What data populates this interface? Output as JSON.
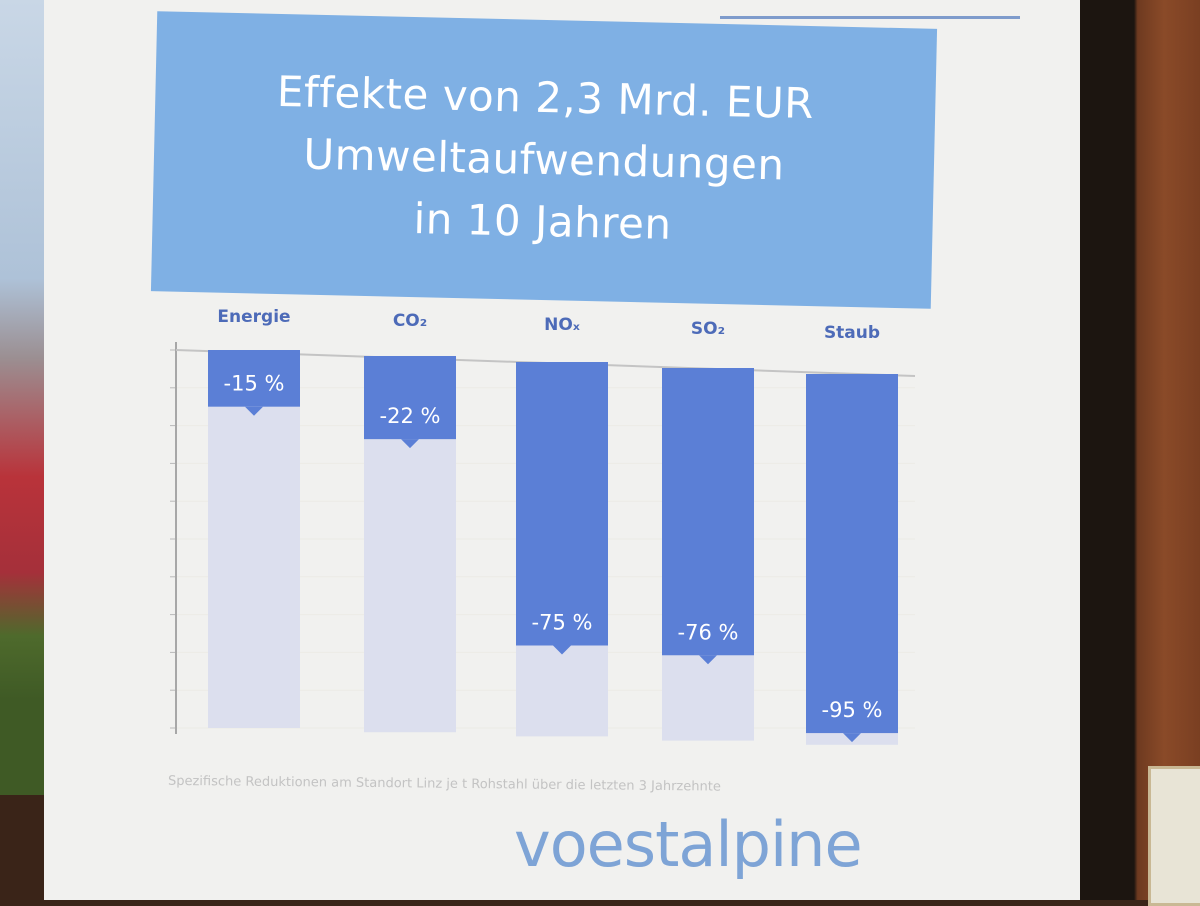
{
  "slide": {
    "title_lines": [
      "Effekte von 2,3 Mrd. EUR",
      "Umweltaufwendungen",
      "in 10 Jahren"
    ],
    "footnote": "Spezifische Reduktionen am Standort Linz je t Rohstahl über die letzten 3 Jahrzehnte",
    "logo": "voestalpine"
  },
  "chart_data": {
    "type": "bar",
    "categories": [
      "Energie",
      "CO₂",
      "NOₓ",
      "SO₂",
      "Staub"
    ],
    "values": [
      -15,
      -22,
      -75,
      -76,
      -95
    ],
    "value_labels": [
      "-15 %",
      "-22 %",
      "-75 %",
      "-76 %",
      "-95 %"
    ],
    "ylim": [
      -100,
      0
    ],
    "grid": true,
    "colors": {
      "reduction": "#5b7fd6",
      "remaining": "#dcdfee",
      "title_bg": "#7fb0e4",
      "logo": "#7ea4d6"
    }
  }
}
